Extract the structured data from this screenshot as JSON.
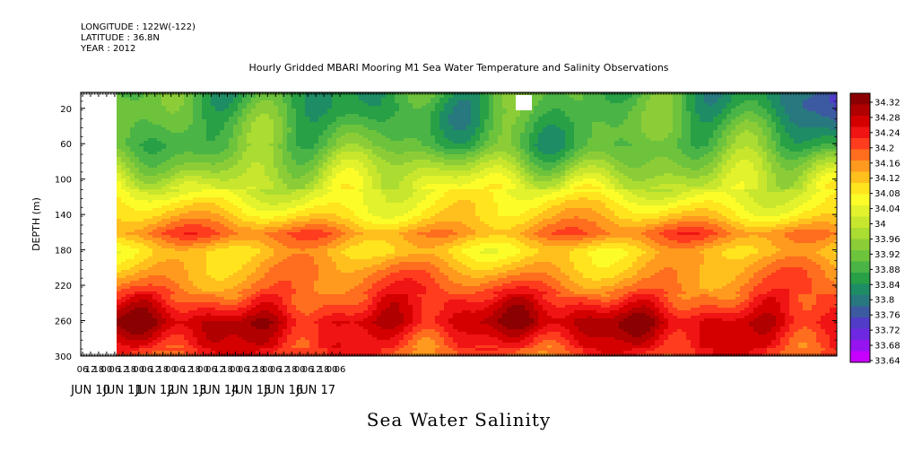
{
  "meta": {
    "longitude": "LONGITUDE : 122W(-122)",
    "latitude": "LATITUDE : 36.8N",
    "year": "YEAR : 2012"
  },
  "chart_data": {
    "type": "heatmap",
    "title": "Hourly Gridded MBARI Mooring M1 Sea Water Temperature and Salinity Observations",
    "xlabel": "Sea Water Salinity",
    "ylabel": "DEPTH (m)",
    "x_hours": [
      "06",
      "12",
      "18",
      "00",
      "06",
      "12",
      "18",
      "00",
      "06",
      "12",
      "18",
      "00",
      "06",
      "12",
      "18",
      "00",
      "06",
      "12",
      "18",
      "00",
      "06",
      "12",
      "18",
      "00",
      "06",
      "12",
      "18",
      "00",
      "06",
      "12",
      "18",
      "00",
      "06"
    ],
    "x_days": [
      "JUN 10",
      "JUN 11",
      "JUN 12",
      "JUN 13",
      "JUN 14",
      "JUN 15",
      "JUN 16",
      "JUN 17"
    ],
    "y_ticks": [
      20,
      60,
      100,
      140,
      180,
      220,
      260,
      300
    ],
    "ylim": [
      300,
      2
    ],
    "colorbar": {
      "levels": [
        34.32,
        34.28,
        34.24,
        34.2,
        34.16,
        34.12,
        34.08,
        34.04,
        34,
        33.96,
        33.92,
        33.88,
        33.84,
        33.8,
        33.76,
        33.72,
        33.68,
        33.64
      ],
      "colors": [
        "#8b0000",
        "#b00000",
        "#d40000",
        "#f01414",
        "#ff3c1e",
        "#ff6e1e",
        "#ff9a1e",
        "#ffc01e",
        "#ffe41e",
        "#fcfc28",
        "#e2f22c",
        "#c8e62d",
        "#aadc32",
        "#8ccd37",
        "#6ec33c",
        "#4bb446",
        "#28a046",
        "#1e8c64",
        "#28787f",
        "#3c5aa0",
        "#503cc8",
        "#6e28e1",
        "#9614f0",
        "#c800ff"
      ]
    },
    "salinity_profile": [
      {
        "depth": 20,
        "salinity": 33.88
      },
      {
        "depth": 60,
        "salinity": 33.9
      },
      {
        "depth": 100,
        "salinity": 34.01
      },
      {
        "depth": 140,
        "salinity": 34.1
      },
      {
        "depth": 160,
        "salinity": 34.17
      },
      {
        "depth": 180,
        "salinity": 34.1
      },
      {
        "depth": 220,
        "salinity": 34.18
      },
      {
        "depth": 260,
        "salinity": 34.28
      },
      {
        "depth": 300,
        "salinity": 34.2
      }
    ],
    "grid": false,
    "legend": "right"
  }
}
